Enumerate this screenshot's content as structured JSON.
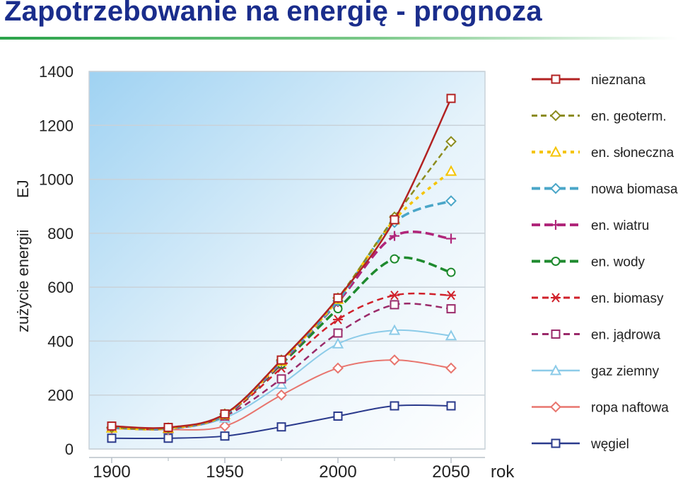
{
  "page": {
    "title": "Zapotrzebowanie na energię - prognoza"
  },
  "chart_data": {
    "type": "line",
    "ylabel": "zużycie energii",
    "yunit": "EJ",
    "xlabel": "rok",
    "xlim": [
      1890,
      2065
    ],
    "ylim": [
      0,
      1400
    ],
    "xticks": [
      1900,
      1950,
      2000,
      2050
    ],
    "yticks": [
      0,
      200,
      400,
      600,
      800,
      1000,
      1200,
      1400
    ],
    "grid": true,
    "legend_position": "right",
    "x": [
      1900,
      1925,
      1950,
      1975,
      2000,
      2025,
      2050
    ],
    "series": [
      {
        "name": "nieznana",
        "color": "#b22222",
        "dash": "",
        "width": 2.5,
        "marker": "square",
        "values": [
          85,
          80,
          130,
          330,
          560,
          850,
          1300
        ]
      },
      {
        "name": "en. geoterm.",
        "color": "#8c8c1e",
        "dash": "8,5",
        "width": 2.5,
        "marker": "diamond",
        "values": [
          80,
          78,
          130,
          330,
          560,
          860,
          1140
        ]
      },
      {
        "name": "en. słoneczna",
        "color": "#f5c400",
        "dash": "5,6",
        "width": 3.5,
        "marker": "triangle",
        "values": [
          78,
          77,
          128,
          325,
          555,
          850,
          1030
        ]
      },
      {
        "name": "nowa biomasa",
        "color": "#4aa6c8",
        "dash": "12,6",
        "width": 3.5,
        "marker": "diamond",
        "values": [
          80,
          77,
          128,
          325,
          550,
          840,
          920
        ]
      },
      {
        "name": "en. wiatru",
        "color": "#b0267a",
        "dash": "12,6",
        "width": 3.5,
        "marker": "plus",
        "values": [
          80,
          76,
          127,
          320,
          545,
          790,
          780
        ]
      },
      {
        "name": "en. wody",
        "color": "#1e8a2e",
        "dash": "12,6",
        "width": 3.5,
        "marker": "circle",
        "values": [
          80,
          76,
          126,
          315,
          520,
          705,
          655
        ]
      },
      {
        "name": "en. biomasy",
        "color": "#d0202a",
        "dash": "9,6",
        "width": 2.5,
        "marker": "asterisk",
        "values": [
          80,
          75,
          124,
          300,
          480,
          570,
          570
        ]
      },
      {
        "name": "en. jądrowa",
        "color": "#9a2a6a",
        "dash": "9,6",
        "width": 2.5,
        "marker": "square",
        "values": [
          80,
          75,
          122,
          260,
          430,
          535,
          520
        ]
      },
      {
        "name": "gaz ziemny",
        "color": "#8ccbe8",
        "dash": "",
        "width": 2,
        "marker": "triangle",
        "values": [
          78,
          74,
          115,
          240,
          390,
          440,
          420
        ]
      },
      {
        "name": "ropa naftowa",
        "color": "#e8756e",
        "dash": "",
        "width": 2,
        "marker": "diamond",
        "values": [
          76,
          72,
          85,
          200,
          300,
          330,
          300
        ]
      },
      {
        "name": "węgiel",
        "color": "#2a3a8c",
        "dash": "",
        "width": 2,
        "marker": "square",
        "values": [
          40,
          40,
          48,
          82,
          122,
          160,
          160
        ]
      }
    ]
  }
}
